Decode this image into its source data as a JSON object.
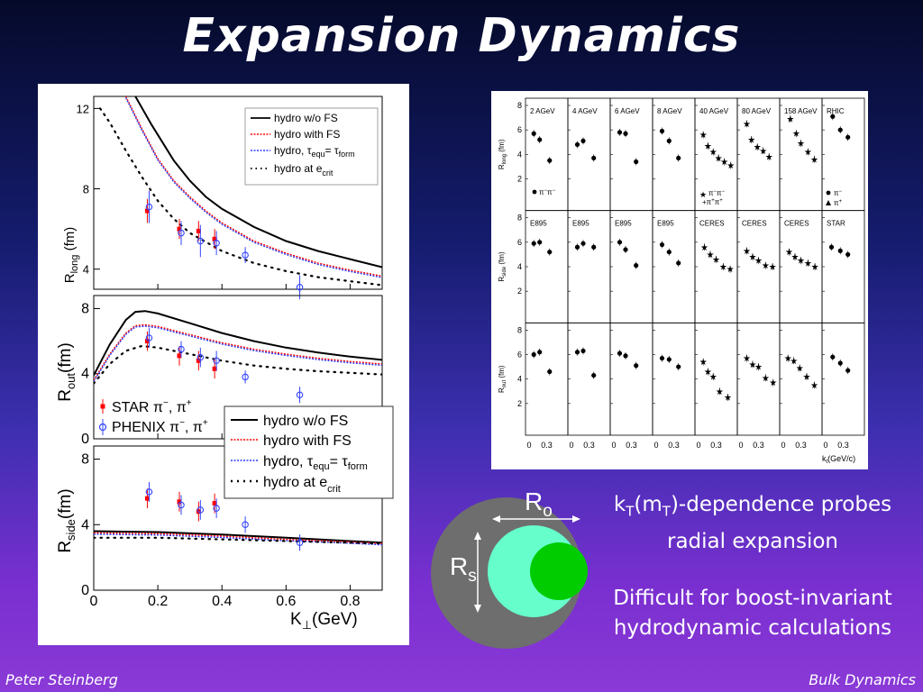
{
  "slide": {
    "title": "Expansion Dynamics",
    "footer_left": "Peter Steinberg",
    "footer_right": "Bulk Dynamics",
    "caption_kt": {
      "k": "k",
      "T1": "T",
      "mid": "(m",
      "T2": "T",
      "rest": ")-dependence probes",
      "line2": "radial expansion"
    },
    "caption_boost": {
      "line1": "Difficult for boost-invariant",
      "line2": "hydrodynamic calculations"
    },
    "diagram": {
      "ro_main": "R",
      "ro_sub": "o",
      "rs_main": "R",
      "rs_sub": "s",
      "outer_color": "#6e6e6e",
      "middle_color": "#66ffcc",
      "inner_color": "#00cc00"
    }
  },
  "chart_data": [
    {
      "type": "line",
      "layout": "3 stacked panels, shared x axis",
      "xlabel_main": "K",
      "xlabel_sub": "⊥",
      "xlabel_unit": "(GeV)",
      "xlim": [
        0,
        0.9
      ],
      "xticks": [
        "0",
        "0.2",
        "0.4",
        "0.6",
        "0.8"
      ],
      "colors": {
        "hydro_no_fs": "#000000",
        "hydro_fs": "#ff0000",
        "hydro_tau": "#2a3cff",
        "hydro_ecrit": "#000000",
        "star": "#ff0000",
        "phenix": "#3344ff"
      },
      "legend_series": {
        "l1": "hydro w/o FS",
        "l2": "hydro with FS",
        "l3a": "hydro, ",
        "l3tau1": "τ",
        "l3sub1": "equ",
        "l3eq": "= ",
        "l3tau2": "τ",
        "l3sub2": "form",
        "l4a": "hydro at ",
        "l4e": "e",
        "l4sub": "crit"
      },
      "legend_data": {
        "star": "STAR  π",
        "star_sup": "−",
        "star_comma": ", π",
        "star_sup2": "+",
        "phenix": "PHENIX π",
        "phenix_sup": "−",
        "phenix_comma": ", π",
        "phenix_sup2": "+"
      },
      "panels": [
        {
          "name": "long",
          "ylabel_main": "R",
          "ylabel_sub": "long",
          "ylabel_unit": " (fm)",
          "ylim": [
            3,
            12.6
          ],
          "yticks": [
            "12",
            "8",
            "4"
          ],
          "series": [
            {
              "name": "hydro w/o FS",
              "x": [
                0.13,
                0.18,
                0.25,
                0.3,
                0.35,
                0.4,
                0.5,
                0.6,
                0.7,
                0.8,
                0.9
              ],
              "y": [
                12.6,
                11.2,
                9.4,
                8.4,
                7.6,
                7.0,
                6.1,
                5.4,
                4.9,
                4.5,
                4.1
              ]
            },
            {
              "name": "hydro with FS",
              "x": [
                0.1,
                0.15,
                0.2,
                0.25,
                0.3,
                0.35,
                0.4,
                0.5,
                0.6,
                0.7,
                0.8,
                0.9
              ],
              "y": [
                12.6,
                11.0,
                9.5,
                8.4,
                7.6,
                6.9,
                6.3,
                5.4,
                4.8,
                4.3,
                3.95,
                3.65
              ]
            },
            {
              "name": "hydro at e_crit",
              "x": [
                0.02,
                0.05,
                0.1,
                0.15,
                0.2,
                0.25,
                0.3,
                0.4,
                0.5,
                0.6,
                0.7,
                0.8,
                0.9
              ],
              "y": [
                12.0,
                11.3,
                9.9,
                8.6,
                7.4,
                6.5,
                5.8,
                4.9,
                4.3,
                3.9,
                3.6,
                3.4,
                3.2
              ]
            }
          ],
          "star": {
            "x": [
              0.17,
              0.27,
              0.33,
              0.38
            ],
            "y": [
              6.9,
              6.0,
              5.9,
              5.5
            ],
            "err": [
              0.6,
              0.5,
              0.5,
              0.5
            ]
          },
          "phenix": {
            "x": [
              0.17,
              0.27,
              0.33,
              0.38,
              0.47,
              0.64
            ],
            "y": [
              7.1,
              5.8,
              5.4,
              5.3,
              4.7,
              3.1
            ],
            "err": [
              0.8,
              0.6,
              0.8,
              0.6,
              0.4,
              0.6
            ]
          }
        },
        {
          "name": "out",
          "ylabel_main": "R",
          "ylabel_sub": "out",
          "ylabel_unit": "(fm)",
          "ylim": [
            0,
            8.8
          ],
          "yticks": [
            "8",
            "4",
            "0"
          ],
          "series": [
            {
              "name": "hydro w/o FS",
              "x": [
                0,
                0.05,
                0.1,
                0.13,
                0.16,
                0.2,
                0.3,
                0.4,
                0.5,
                0.6,
                0.7,
                0.8,
                0.9
              ],
              "y": [
                3.9,
                5.8,
                7.3,
                7.8,
                7.85,
                7.7,
                7.1,
                6.5,
                6.0,
                5.6,
                5.3,
                5.05,
                4.85
              ]
            },
            {
              "name": "hydro with FS",
              "x": [
                0,
                0.05,
                0.1,
                0.13,
                0.16,
                0.2,
                0.3,
                0.4,
                0.5,
                0.6,
                0.7,
                0.8,
                0.9
              ],
              "y": [
                3.6,
                5.2,
                6.5,
                6.95,
                7.0,
                6.9,
                6.4,
                5.9,
                5.5,
                5.2,
                4.95,
                4.75,
                4.6
              ]
            },
            {
              "name": "hydro at e_crit",
              "x": [
                0,
                0.05,
                0.1,
                0.15,
                0.2,
                0.3,
                0.4,
                0.5,
                0.6,
                0.7,
                0.8,
                0.9
              ],
              "y": [
                3.4,
                4.6,
                5.4,
                5.7,
                5.6,
                5.2,
                4.8,
                4.5,
                4.3,
                4.15,
                4.05,
                3.95
              ]
            }
          ],
          "star": {
            "x": [
              0.17,
              0.27,
              0.33,
              0.38
            ],
            "y": [
              6.0,
              5.1,
              4.8,
              4.3
            ],
            "err": [
              0.6,
              0.6,
              0.6,
              0.6
            ]
          },
          "phenix": {
            "x": [
              0.17,
              0.27,
              0.33,
              0.38,
              0.47,
              0.64
            ],
            "y": [
              6.2,
              5.5,
              5.0,
              4.8,
              3.8,
              2.7
            ],
            "err": [
              0.6,
              0.5,
              0.6,
              0.6,
              0.4,
              0.5
            ]
          }
        },
        {
          "name": "side",
          "ylabel_main": "R",
          "ylabel_sub": "side",
          "ylabel_unit": "(fm)",
          "ylim": [
            0,
            8.8
          ],
          "yticks": [
            "8",
            "4",
            "0"
          ],
          "series": [
            {
              "name": "hydro w/o FS",
              "x": [
                0,
                0.2,
                0.4,
                0.6,
                0.8,
                0.9
              ],
              "y": [
                3.6,
                3.55,
                3.4,
                3.2,
                3.0,
                2.9
              ]
            },
            {
              "name": "hydro with FS",
              "x": [
                0,
                0.2,
                0.4,
                0.6,
                0.8,
                0.9
              ],
              "y": [
                3.5,
                3.45,
                3.3,
                3.1,
                2.95,
                2.85
              ]
            },
            {
              "name": "hydro at e_crit",
              "x": [
                0,
                0.2,
                0.4,
                0.6,
                0.8,
                0.9
              ],
              "y": [
                3.2,
                3.2,
                3.1,
                3.0,
                2.9,
                2.85
              ]
            }
          ],
          "star": {
            "x": [
              0.17,
              0.27,
              0.33,
              0.38
            ],
            "y": [
              5.6,
              5.4,
              4.8,
              5.3
            ],
            "err": [
              0.6,
              0.6,
              0.6,
              0.6
            ]
          },
          "phenix": {
            "x": [
              0.17,
              0.27,
              0.33,
              0.38,
              0.47,
              0.64
            ],
            "y": [
              6.0,
              5.2,
              4.9,
              5.0,
              4.0,
              2.9
            ],
            "err": [
              0.6,
              0.6,
              0.6,
              0.6,
              0.5,
              0.5
            ]
          }
        }
      ]
    },
    {
      "type": "scatter",
      "layout": "3 rows × 8 columns grid",
      "xlabel_main": "k",
      "xlabel_sub": "t",
      "xlabel_unit": "(GeV/c)",
      "xticks": [
        "0",
        "0.3"
      ],
      "ylim": [
        0,
        8
      ],
      "yticks": [
        "8",
        "6",
        "4",
        "2"
      ],
      "rows": [
        {
          "ylabel_main": "R",
          "ylabel_sub": "long",
          "ylabel_unit": " (fm)",
          "labels": [
            "2 AGeV",
            "4 AGeV",
            "6 AGeV",
            "8 AGeV",
            "40 AGeV",
            "80 AGeV",
            "158 AGeV",
            "RHIC"
          ],
          "points": [
            {
              "x": [
                0.08,
                0.18,
                0.35
              ],
              "y": [
                5.7,
                5.2,
                3.5
              ],
              "marker": "dot"
            },
            {
              "x": [
                0.1,
                0.2,
                0.38
              ],
              "y": [
                4.8,
                5.1,
                3.7
              ],
              "marker": "dot"
            },
            {
              "x": [
                0.1,
                0.2,
                0.38
              ],
              "y": [
                5.8,
                5.7,
                3.4
              ],
              "marker": "dot"
            },
            {
              "x": [
                0.1,
                0.22,
                0.38
              ],
              "y": [
                5.9,
                5.1,
                3.7
              ],
              "marker": "dot"
            },
            {
              "x": [
                0.08,
                0.16,
                0.25,
                0.34,
                0.44,
                0.55
              ],
              "y": [
                5.6,
                4.7,
                4.2,
                3.7,
                3.4,
                3.1
              ],
              "marker": "star"
            },
            {
              "x": [
                0.1,
                0.18,
                0.28,
                0.38,
                0.48
              ],
              "y": [
                6.5,
                5.2,
                4.6,
                4.3,
                3.8
              ],
              "marker": "star"
            },
            {
              "x": [
                0.12,
                0.22,
                0.3,
                0.42,
                0.53
              ],
              "y": [
                6.9,
                5.7,
                4.9,
                4.2,
                3.6
              ],
              "marker": "star"
            },
            {
              "x": [
                0.12,
                0.25,
                0.38
              ],
              "y": [
                7.1,
                6.0,
                5.4
              ],
              "marker": "dot"
            }
          ],
          "legend": {
            "col0": "π",
            "col0sup": "−",
            "col0b": "π",
            "col0bsup": "−",
            "col4": "π",
            "col4sup": "−",
            "col4b": "π",
            "col4bsup": "−",
            "col4c": "+π",
            "col4csup": "+",
            "col4d": "π",
            "col4dsup": "+",
            "col7": "π",
            "col7sup": "−",
            "col7b": "π",
            "col7bsup": "+"
          }
        },
        {
          "ylabel_main": "R",
          "ylabel_sub": "side",
          "ylabel_unit": " (fm)",
          "labels": [
            "E895",
            "E895",
            "E895",
            "E895",
            "CERES",
            "CERES",
            "CERES",
            "STAR"
          ],
          "points": [
            {
              "x": [
                0.08,
                0.18,
                0.35
              ],
              "y": [
                5.9,
                6.0,
                5.2
              ],
              "marker": "dot"
            },
            {
              "x": [
                0.1,
                0.2,
                0.38
              ],
              "y": [
                5.6,
                5.9,
                5.6
              ],
              "marker": "dot"
            },
            {
              "x": [
                0.1,
                0.2,
                0.38
              ],
              "y": [
                6.0,
                5.4,
                4.1
              ],
              "marker": "dot"
            },
            {
              "x": [
                0.1,
                0.22,
                0.38
              ],
              "y": [
                5.8,
                5.2,
                4.3
              ],
              "marker": "dot"
            },
            {
              "x": [
                0.1,
                0.2,
                0.3,
                0.42,
                0.54
              ],
              "y": [
                5.6,
                5.0,
                4.6,
                4.0,
                3.8
              ],
              "marker": "star"
            },
            {
              "x": [
                0.1,
                0.2,
                0.3,
                0.42,
                0.54
              ],
              "y": [
                5.3,
                4.8,
                4.5,
                4.1,
                4.0
              ],
              "marker": "star"
            },
            {
              "x": [
                0.1,
                0.2,
                0.3,
                0.42,
                0.54
              ],
              "y": [
                5.2,
                4.8,
                4.5,
                4.3,
                4.0
              ],
              "marker": "star"
            },
            {
              "x": [
                0.1,
                0.25,
                0.38
              ],
              "y": [
                5.6,
                5.3,
                5.0
              ],
              "marker": "dot"
            }
          ]
        },
        {
          "ylabel_main": "R",
          "ylabel_sub": "out",
          "ylabel_unit": " (fm)",
          "labels": [
            "",
            "",
            "",
            "",
            "",
            "",
            "",
            ""
          ],
          "points": [
            {
              "x": [
                0.08,
                0.18,
                0.35
              ],
              "y": [
                6.0,
                6.2,
                4.6
              ],
              "marker": "dot"
            },
            {
              "x": [
                0.1,
                0.2,
                0.38
              ],
              "y": [
                6.2,
                6.3,
                4.3
              ],
              "marker": "dot"
            },
            {
              "x": [
                0.1,
                0.2,
                0.38
              ],
              "y": [
                6.1,
                5.9,
                5.1
              ],
              "marker": "dot"
            },
            {
              "x": [
                0.1,
                0.22,
                0.38
              ],
              "y": [
                5.7,
                5.6,
                5.0
              ],
              "marker": "dot"
            },
            {
              "x": [
                0.08,
                0.16,
                0.25,
                0.36,
                0.5
              ],
              "y": [
                5.4,
                4.6,
                4.2,
                3.0,
                2.5
              ],
              "marker": "star"
            },
            {
              "x": [
                0.1,
                0.2,
                0.3,
                0.42,
                0.55
              ],
              "y": [
                5.7,
                5.2,
                5.0,
                4.1,
                3.7
              ],
              "marker": "star"
            },
            {
              "x": [
                0.08,
                0.18,
                0.28,
                0.4,
                0.53
              ],
              "y": [
                5.7,
                5.5,
                4.9,
                4.2,
                3.5
              ],
              "marker": "star"
            },
            {
              "x": [
                0.12,
                0.25,
                0.38
              ],
              "y": [
                5.8,
                5.3,
                4.7
              ],
              "marker": "dot"
            }
          ]
        }
      ]
    }
  ]
}
